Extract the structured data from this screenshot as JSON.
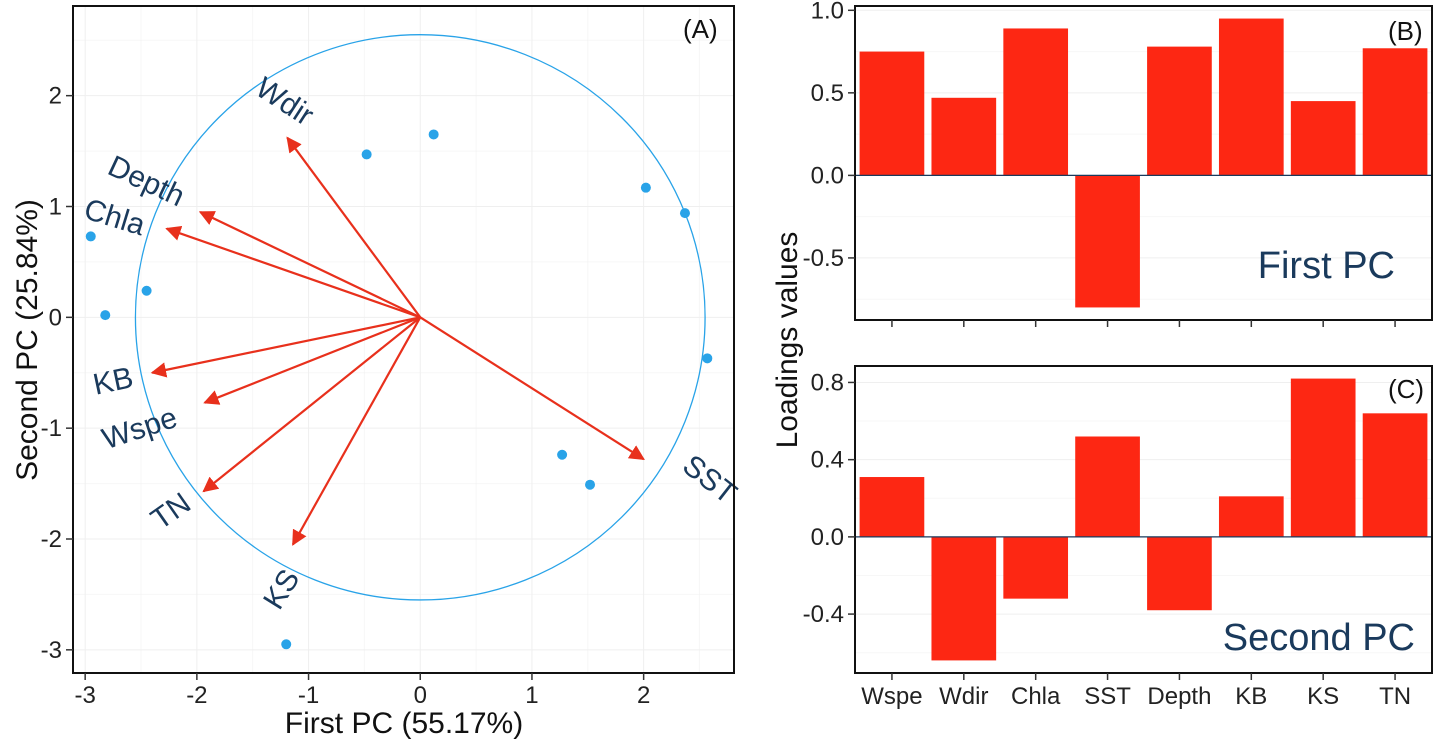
{
  "colors": {
    "arrow": "#e8301c",
    "circle": "#29a3e8",
    "point": "#29a3e8",
    "bar": "#fd2713",
    "label": "#1a3a5c"
  },
  "chart_data": [
    {
      "panel": "(A)",
      "type": "scatter",
      "xlabel": "First PC (55.17%)",
      "ylabel": "Second PC (25.84%)",
      "xlim": [
        -3.1,
        2.8
      ],
      "ylim": [
        -3.2,
        2.8
      ],
      "xticks": [
        -3,
        -2,
        -1,
        0,
        1,
        2
      ],
      "yticks": [
        -3,
        -2,
        -1,
        0,
        1,
        2
      ],
      "grid": true,
      "circle": {
        "cx": 0,
        "cy": 0,
        "r": 2.55
      },
      "points": [
        {
          "x": 0.12,
          "y": 1.65
        },
        {
          "x": -0.48,
          "y": 1.47
        },
        {
          "x": 2.02,
          "y": 1.17
        },
        {
          "x": 2.37,
          "y": 0.94
        },
        {
          "x": -2.95,
          "y": 0.73
        },
        {
          "x": -2.45,
          "y": 0.24
        },
        {
          "x": -2.82,
          "y": 0.02
        },
        {
          "x": 2.57,
          "y": -0.37
        },
        {
          "x": 1.27,
          "y": -1.24
        },
        {
          "x": 1.52,
          "y": -1.51
        },
        {
          "x": -1.2,
          "y": -2.95
        }
      ],
      "vectors": [
        {
          "label": "Wdir",
          "x": -1.19,
          "y": 1.62
        },
        {
          "label": "Depth",
          "x": -1.97,
          "y": 0.95
        },
        {
          "label": "Chla",
          "x": -2.27,
          "y": 0.8
        },
        {
          "label": "KB",
          "x": -2.4,
          "y": -0.5
        },
        {
          "label": "Wspe",
          "x": -1.93,
          "y": -0.77
        },
        {
          "label": "TN",
          "x": -1.94,
          "y": -1.57
        },
        {
          "label": "KS",
          "x": -1.14,
          "y": -2.05
        },
        {
          "label": "SST",
          "x": 2.0,
          "y": -1.28
        }
      ]
    },
    {
      "panel": "(B)",
      "type": "bar",
      "title": "First PC",
      "categories": [
        "Wspe",
        "Wdir",
        "Chla",
        "SST",
        "Depth",
        "KB",
        "KS",
        "TN"
      ],
      "values": [
        0.75,
        0.47,
        0.89,
        -0.8,
        0.78,
        0.95,
        0.45,
        0.77
      ],
      "ylim": [
        -0.87,
        1.02
      ],
      "yticks": [
        -0.5,
        0.0,
        0.5,
        1.0
      ],
      "ytick_labels": [
        "-0.5",
        "0.0",
        "0.5",
        "1.0"
      ]
    },
    {
      "panel": "(C)",
      "type": "bar",
      "title": "Second PC",
      "categories": [
        "Wspe",
        "Wdir",
        "Chla",
        "SST",
        "Depth",
        "KB",
        "KS",
        "TN"
      ],
      "values": [
        0.31,
        -0.64,
        -0.32,
        0.52,
        -0.38,
        0.21,
        0.82,
        0.64
      ],
      "ylim": [
        -0.7,
        0.88
      ],
      "yticks": [
        -0.4,
        0.0,
        0.4,
        0.8
      ],
      "ytick_labels": [
        "-0.4",
        "0.0",
        "0.4",
        "0.8"
      ]
    }
  ],
  "shared": {
    "ylabel": "Loadings values"
  }
}
